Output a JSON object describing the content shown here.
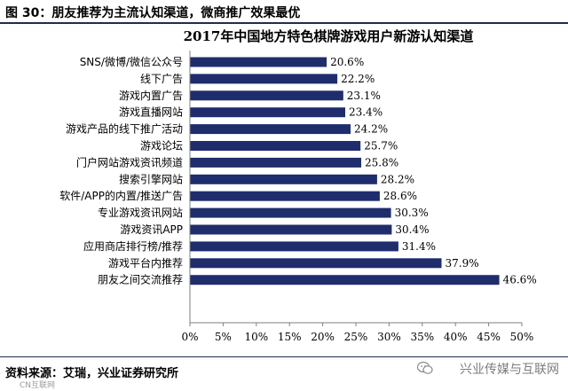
{
  "figure": {
    "caption": "图 30：朋友推荐为主流认知渠道，微商推广效果最优",
    "source": "资料来源：艾瑞，兴业证券研究所",
    "watermark": "兴业传媒与互联网",
    "watermark_small": "CN互联网"
  },
  "colors": {
    "bar": "#1f2d6d",
    "rule": "#1f2d4c"
  },
  "chart_data": {
    "type": "bar",
    "orientation": "horizontal",
    "title": "2017年中国地方特色棋牌游戏用户新游认知渠道",
    "categories": [
      "SNS/微博/微信公众号",
      "线下广告",
      "游戏内置广告",
      "游戏直播网站",
      "游戏产品的线下推广活动",
      "游戏论坛",
      "门户网站游戏资讯频道",
      "搜索引擎网站",
      "软件/APP的内置/推送广告",
      "专业游戏资讯网站",
      "游戏资讯APP",
      "应用商店排行榜/推荐",
      "游戏平台内推荐",
      "朋友之间交流推荐"
    ],
    "values": [
      20.6,
      22.2,
      23.1,
      23.4,
      24.2,
      25.7,
      25.8,
      28.2,
      28.6,
      30.3,
      30.4,
      31.4,
      37.9,
      46.6
    ],
    "value_labels": [
      "20.6%",
      "22.2%",
      "23.1%",
      "23.4%",
      "24.2%",
      "25.7%",
      "25.8%",
      "28.2%",
      "28.6%",
      "30.3%",
      "30.4%",
      "31.4%",
      "37.9%",
      "46.6%"
    ],
    "xlim": [
      0,
      50
    ],
    "xticks": [
      0,
      5,
      10,
      15,
      20,
      25,
      30,
      35,
      40,
      45,
      50
    ],
    "xtick_labels": [
      "0%",
      "5%",
      "10%",
      "15%",
      "20%",
      "25%",
      "30%",
      "35%",
      "40%",
      "45%",
      "50%"
    ],
    "grid": false,
    "legend": "none"
  }
}
